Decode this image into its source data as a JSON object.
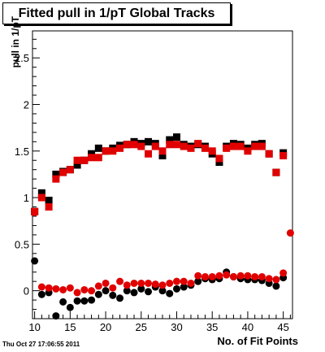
{
  "title": "Fitted pull in 1/pT  Global Tracks",
  "footer": {
    "timestamp": "Thu Oct 27 17:06:55 2011"
  },
  "chart_data": {
    "type": "scatter",
    "title": "Fitted pull in 1/pT  Global Tracks",
    "xlabel": "No. of Fit Points",
    "ylabel": "pull in 1/pT",
    "xlim": [
      9.7,
      46.3
    ],
    "ylim": [
      -0.3,
      2.79
    ],
    "x_ticks": [
      10,
      15,
      20,
      25,
      30,
      35,
      40,
      45
    ],
    "y_ticks": [
      0,
      0.5,
      1,
      1.5,
      2,
      2.5
    ],
    "y_tick_labels": [
      "0",
      "0.5",
      "1",
      "1.5",
      "2",
      "2.5"
    ],
    "grid": false,
    "legend": "none",
    "series": [
      {
        "color": "#000000",
        "marker": "square",
        "x": [
          10,
          11,
          12,
          13,
          14,
          15,
          16,
          17,
          18,
          19,
          20,
          21,
          22,
          23,
          24,
          25,
          26,
          27,
          28,
          29,
          30,
          31,
          32,
          33,
          34,
          35,
          36,
          37,
          38,
          39,
          40,
          41,
          42,
          43,
          44,
          45
        ],
        "y": [
          0.85,
          1.05,
          0.97,
          1.25,
          1.28,
          1.3,
          1.35,
          1.4,
          1.47,
          1.53,
          1.5,
          1.53,
          1.56,
          1.57,
          1.6,
          1.58,
          1.6,
          1.58,
          1.45,
          1.62,
          1.65,
          1.57,
          1.55,
          1.57,
          1.55,
          1.47,
          1.38,
          1.55,
          1.58,
          1.57,
          1.53,
          1.57,
          1.58,
          1.47,
          1.27,
          1.48
        ]
      },
      {
        "color": "#e00000",
        "marker": "square",
        "x": [
          10,
          11,
          12,
          13,
          14,
          15,
          16,
          17,
          18,
          19,
          20,
          21,
          22,
          23,
          24,
          25,
          26,
          27,
          28,
          29,
          30,
          31,
          32,
          33,
          34,
          35,
          36,
          37,
          38,
          39,
          40,
          41,
          42,
          43,
          44,
          45
        ],
        "y": [
          0.85,
          1.0,
          0.9,
          1.2,
          1.27,
          1.3,
          1.4,
          1.4,
          1.43,
          1.43,
          1.5,
          1.5,
          1.53,
          1.57,
          1.57,
          1.55,
          1.47,
          1.55,
          1.5,
          1.57,
          1.57,
          1.55,
          1.53,
          1.58,
          1.53,
          1.5,
          1.42,
          1.53,
          1.55,
          1.55,
          1.5,
          1.55,
          1.55,
          1.47,
          1.27,
          1.45
        ]
      },
      {
        "color": "#000000",
        "marker": "circle",
        "x": [
          10,
          11,
          12,
          13,
          14,
          15,
          16,
          17,
          18,
          19,
          20,
          21,
          22,
          23,
          24,
          25,
          26,
          27,
          28,
          29,
          30,
          31,
          32,
          33,
          34,
          35,
          36,
          37,
          38,
          39,
          40,
          41,
          42,
          43,
          44,
          45
        ],
        "y": [
          0.32,
          -0.04,
          -0.02,
          -0.27,
          -0.12,
          -0.18,
          -0.11,
          -0.11,
          -0.1,
          -0.04,
          0.0,
          -0.05,
          -0.08,
          0.0,
          -0.02,
          0.02,
          -0.01,
          0.04,
          0.0,
          -0.03,
          0.02,
          0.04,
          0.06,
          0.1,
          0.13,
          0.12,
          0.13,
          0.2,
          0.15,
          0.13,
          0.12,
          0.12,
          0.11,
          0.08,
          0.05,
          0.14
        ]
      },
      {
        "color": "#e00000",
        "marker": "circle",
        "x": [
          10,
          11,
          12,
          13,
          14,
          15,
          16,
          17,
          18,
          19,
          20,
          21,
          22,
          23,
          24,
          25,
          26,
          27,
          28,
          29,
          30,
          31,
          32,
          33,
          34,
          35,
          36,
          37,
          38,
          39,
          40,
          41,
          42,
          43,
          44,
          45,
          46
        ],
        "y": [
          0.84,
          0.04,
          0.03,
          0.02,
          0.01,
          0.03,
          -0.02,
          0.01,
          0.0,
          0.05,
          0.08,
          0.03,
          0.1,
          0.06,
          0.08,
          0.08,
          0.08,
          0.07,
          0.06,
          0.08,
          0.1,
          0.1,
          0.08,
          0.16,
          0.15,
          0.15,
          0.16,
          0.17,
          0.15,
          0.16,
          0.16,
          0.15,
          0.15,
          0.13,
          0.12,
          0.19,
          0.62
        ]
      }
    ]
  }
}
